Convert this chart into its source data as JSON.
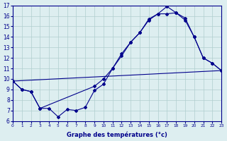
{
  "xlabel": "Graphe des températures (°c)",
  "bg_color": "#ddeef0",
  "line_color": "#00008b",
  "grid_color": "#b0cece",
  "ylim": [
    6,
    17
  ],
  "xlim": [
    0,
    23
  ],
  "yticks": [
    6,
    7,
    8,
    9,
    10,
    11,
    12,
    13,
    14,
    15,
    16,
    17
  ],
  "xticks": [
    0,
    1,
    2,
    3,
    4,
    5,
    6,
    7,
    8,
    9,
    10,
    11,
    12,
    13,
    14,
    15,
    16,
    17,
    18,
    19,
    20,
    21,
    22,
    23
  ],
  "series1_x": [
    0,
    1,
    2,
    3,
    4,
    5,
    6,
    7,
    8,
    9,
    10,
    11,
    12,
    13,
    14,
    15,
    16,
    17,
    18,
    19,
    20,
    21,
    22,
    23
  ],
  "series1_y": [
    9.8,
    9.0,
    8.8,
    7.2,
    7.2,
    6.4,
    7.1,
    7.0,
    7.3,
    8.9,
    9.5,
    11.0,
    12.2,
    13.5,
    14.4,
    15.6,
    16.2,
    16.9,
    16.3,
    15.8,
    14.0,
    12.0,
    11.5,
    10.8
  ],
  "series2_x": [
    0,
    1,
    2,
    3,
    9,
    10,
    11,
    12,
    13,
    14,
    15,
    16,
    17,
    18,
    19,
    20,
    21,
    22,
    23
  ],
  "series2_y": [
    9.8,
    9.0,
    8.8,
    7.2,
    9.3,
    10.0,
    11.0,
    12.4,
    13.5,
    14.4,
    15.7,
    16.2,
    16.2,
    16.3,
    15.6,
    14.0,
    12.0,
    11.5,
    10.8
  ],
  "series3_x": [
    0,
    23
  ],
  "series3_y": [
    9.8,
    10.8
  ]
}
